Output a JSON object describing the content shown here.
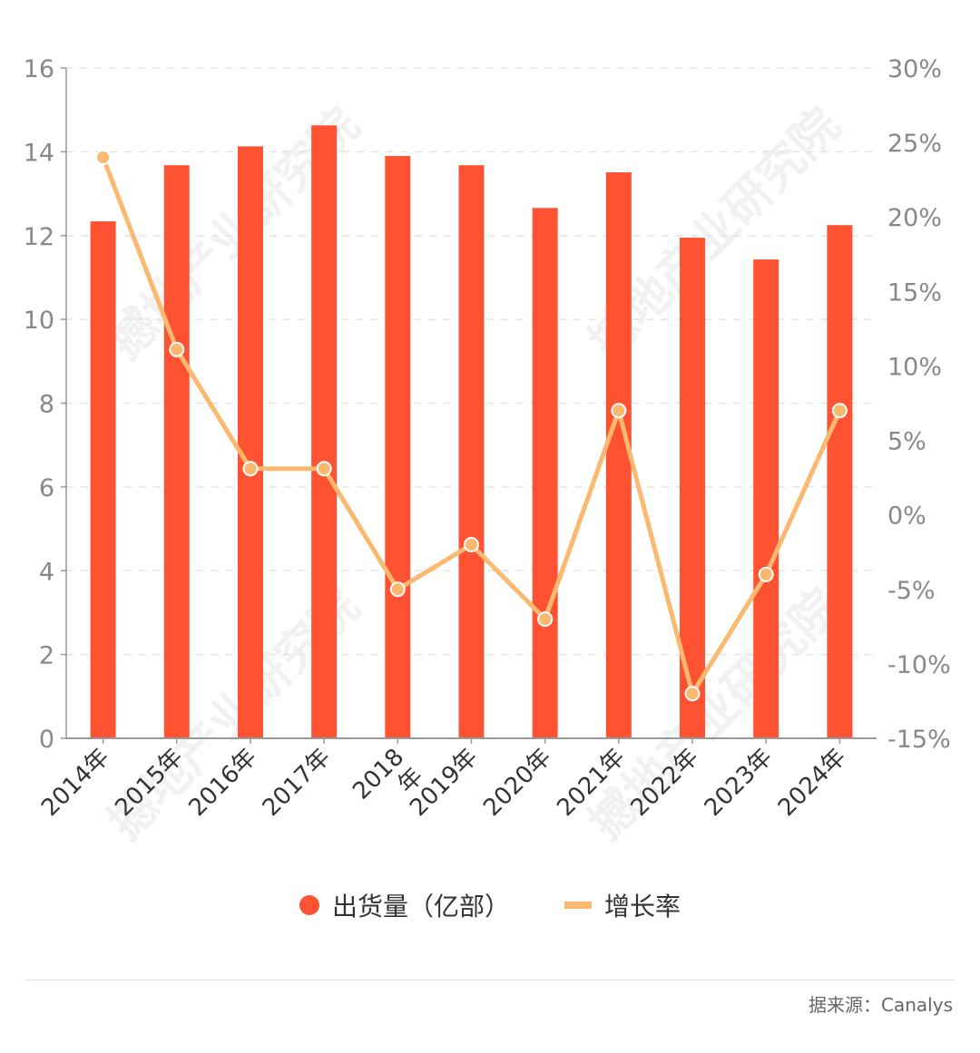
{
  "chart_data": {
    "type": "bar+line",
    "title": "",
    "categories": [
      "2014年",
      "2015年",
      "2016年",
      "2017年",
      "2018\n年",
      "2019年",
      "2020年",
      "2021年",
      "2022年",
      "2023年",
      "2024年"
    ],
    "series": [
      {
        "name": "出货量（亿部）",
        "type": "bar",
        "axis": "left",
        "color": "#FF5233",
        "values": [
          12.34,
          13.68,
          14.13,
          14.63,
          13.9,
          13.68,
          12.66,
          13.51,
          11.95,
          11.43,
          12.25
        ]
      },
      {
        "name": "增长率",
        "type": "line",
        "axis": "right",
        "color": "#FBB970",
        "unit": "%",
        "values": [
          24.0,
          11.1,
          3.1,
          3.1,
          -5.0,
          -2.0,
          -7.0,
          7.0,
          -12.0,
          -4.0,
          7.0
        ]
      }
    ],
    "left_axis": {
      "ylim": [
        0,
        16
      ],
      "ticks": [
        "0",
        "2",
        "4",
        "6",
        "8",
        "10",
        "12",
        "14",
        "16"
      ]
    },
    "right_axis": {
      "ylim": [
        -15,
        30
      ],
      "ticks": [
        "-15%",
        "-10%",
        "-5%",
        "0%",
        "5%",
        "10%",
        "15%",
        "20%",
        "25%",
        "30%"
      ]
    },
    "grid": "horizontal dashed",
    "legend_position": "bottom",
    "watermark": "撼地产业研究院"
  },
  "legend": {
    "bar_label": "出货量（亿部）",
    "line_label": "增长率",
    "bar_color": "#FF5233",
    "line_color": "#FBB970"
  },
  "footer": {
    "source": "据来源：Canalys"
  }
}
